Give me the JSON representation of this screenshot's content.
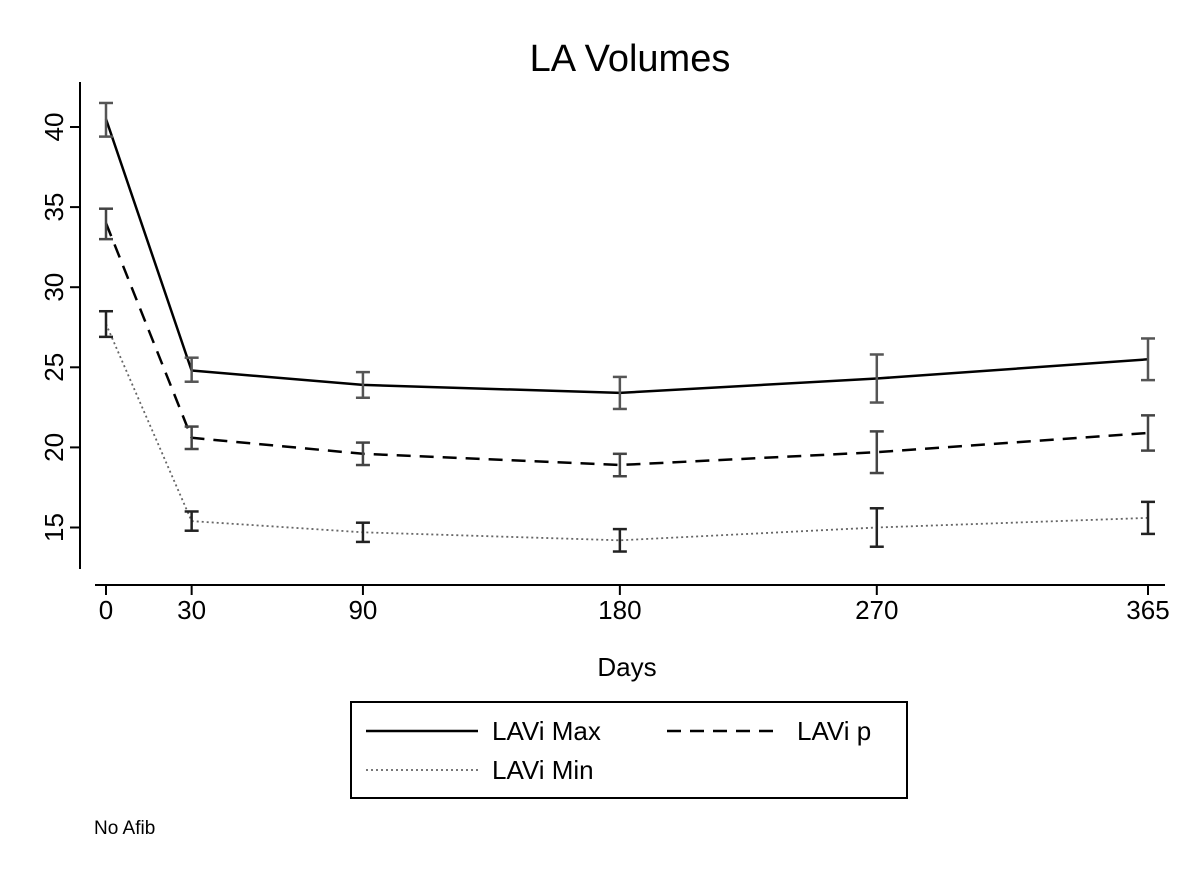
{
  "chart_data": {
    "type": "line",
    "title": "LA Volumes",
    "xlabel": "Days",
    "ylabel": "",
    "x": [
      0,
      30,
      90,
      180,
      270,
      365
    ],
    "x_ticks": [
      "0",
      "30",
      "90",
      "180",
      "270",
      "365"
    ],
    "y_ticks": [
      "15",
      "20",
      "25",
      "30",
      "35",
      "40"
    ],
    "y_tick_values": [
      15,
      20,
      25,
      30,
      35,
      40
    ],
    "xlim": [
      0,
      365
    ],
    "ylim": [
      12.5,
      42.5
    ],
    "grid": false,
    "legend_placement": "bottom",
    "note": "No Afib",
    "series": [
      {
        "name": "LAVi Max",
        "style": "solid",
        "color": "#000000",
        "errorbar_color": "#555555",
        "values": [
          40.5,
          24.8,
          23.9,
          23.4,
          24.3,
          25.5
        ],
        "lower": [
          39.4,
          24.1,
          23.1,
          22.4,
          22.8,
          24.2
        ],
        "upper": [
          41.5,
          25.6,
          24.7,
          24.4,
          25.8,
          26.8
        ]
      },
      {
        "name": "LAVi p",
        "style": "dashed",
        "color": "#000000",
        "errorbar_color": "#444444",
        "values": [
          34.0,
          20.6,
          19.6,
          18.9,
          19.7,
          20.9
        ],
        "lower": [
          33.0,
          19.9,
          18.9,
          18.2,
          18.4,
          19.8
        ],
        "upper": [
          34.9,
          21.3,
          20.3,
          19.6,
          21.0,
          22.0
        ]
      },
      {
        "name": "LAVi Min",
        "style": "dotted",
        "color": "#666666",
        "errorbar_color": "#222222",
        "values": [
          27.7,
          15.4,
          14.7,
          14.2,
          15.0,
          15.6
        ],
        "lower": [
          26.9,
          14.8,
          14.1,
          13.5,
          13.8,
          14.6
        ],
        "upper": [
          28.5,
          16.0,
          15.3,
          14.9,
          16.2,
          16.6
        ]
      }
    ]
  }
}
